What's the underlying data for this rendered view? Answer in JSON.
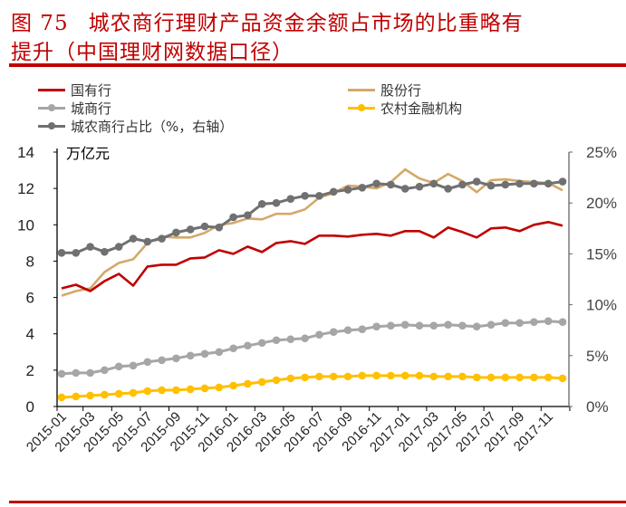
{
  "header": {
    "figure_label": "图 75",
    "title_line1": "城农商行理财产品资金余额占市场的比重略有",
    "title_line2": "提升（中国理财网数据口径）"
  },
  "chart_data": {
    "type": "line",
    "title": "",
    "ylabel": "万亿元",
    "ylabel_right": "",
    "ylim": [
      0,
      14
    ],
    "y_ticks": [
      0,
      2,
      4,
      6,
      8,
      10,
      12,
      14
    ],
    "y2lim": [
      0,
      25
    ],
    "y2_ticks": [
      "0%",
      "5%",
      "10%",
      "15%",
      "20%",
      "25%"
    ],
    "grid": false,
    "legend_position": "top",
    "x": [
      "2015-01",
      "2015-02",
      "2015-03",
      "2015-04",
      "2015-05",
      "2015-06",
      "2015-07",
      "2015-08",
      "2015-09",
      "2015-10",
      "2015-11",
      "2015-12",
      "2016-01",
      "2016-02",
      "2016-03",
      "2016-04",
      "2016-05",
      "2016-06",
      "2016-07",
      "2016-08",
      "2016-09",
      "2016-10",
      "2016-11",
      "2016-12",
      "2017-01",
      "2017-02",
      "2017-03",
      "2017-04",
      "2017-05",
      "2017-06",
      "2017-07",
      "2017-08",
      "2017-09",
      "2017-10",
      "2017-11",
      "2017-12"
    ],
    "x_tick_labels": [
      "2015-01",
      "2015-03",
      "2015-05",
      "2015-07",
      "2015-09",
      "2015-11",
      "2016-01",
      "2016-03",
      "2016-05",
      "2016-07",
      "2016-09",
      "2016-11",
      "2017-01",
      "2017-03",
      "2017-05",
      "2017-07",
      "2017-09",
      "2017-11"
    ],
    "series": [
      {
        "name": "国有行",
        "color": "#c00000",
        "markers": false,
        "axis": "left",
        "values": [
          6.5,
          6.7,
          6.35,
          6.9,
          7.3,
          6.65,
          7.7,
          7.8,
          7.8,
          8.15,
          8.2,
          8.6,
          8.4,
          8.8,
          8.5,
          9.0,
          9.1,
          8.95,
          9.4,
          9.4,
          9.35,
          9.45,
          9.5,
          9.4,
          9.65,
          9.65,
          9.3,
          9.85,
          9.6,
          9.3,
          9.8,
          9.85,
          9.65,
          10.0,
          10.15,
          9.95
        ]
      },
      {
        "name": "股份行",
        "color": "#d4a96a",
        "markers": false,
        "axis": "left",
        "values": [
          6.1,
          6.35,
          6.5,
          7.4,
          7.9,
          8.1,
          9.0,
          9.35,
          9.3,
          9.3,
          9.55,
          10.0,
          10.1,
          10.35,
          10.3,
          10.6,
          10.6,
          10.85,
          11.5,
          11.75,
          12.15,
          12.1,
          12.0,
          12.35,
          13.05,
          12.55,
          12.3,
          12.8,
          12.4,
          11.8,
          12.45,
          12.5,
          12.4,
          12.35,
          12.3,
          11.9
        ]
      },
      {
        "name": "城商行",
        "color": "#a6a6a6",
        "markers": true,
        "axis": "left",
        "values": [
          1.8,
          1.85,
          1.85,
          2.0,
          2.2,
          2.25,
          2.45,
          2.55,
          2.65,
          2.8,
          2.9,
          3.0,
          3.2,
          3.35,
          3.5,
          3.65,
          3.7,
          3.75,
          3.95,
          4.1,
          4.2,
          4.25,
          4.4,
          4.45,
          4.5,
          4.45,
          4.45,
          4.5,
          4.45,
          4.4,
          4.5,
          4.6,
          4.6,
          4.65,
          4.7,
          4.65
        ]
      },
      {
        "name": "农村金融机构",
        "color": "#ffc000",
        "markers": true,
        "axis": "left",
        "values": [
          0.5,
          0.55,
          0.6,
          0.65,
          0.7,
          0.75,
          0.85,
          0.9,
          0.9,
          0.95,
          1.0,
          1.05,
          1.15,
          1.25,
          1.35,
          1.45,
          1.55,
          1.6,
          1.65,
          1.65,
          1.65,
          1.7,
          1.7,
          1.7,
          1.7,
          1.7,
          1.65,
          1.65,
          1.65,
          1.6,
          1.6,
          1.6,
          1.6,
          1.6,
          1.6,
          1.55
        ]
      },
      {
        "name": "城农商行占比（%，右轴）",
        "color": "#707070",
        "markers": true,
        "axis": "right",
        "values": [
          15.1,
          15.1,
          15.7,
          15.2,
          15.7,
          16.5,
          16.2,
          16.5,
          17.1,
          17.4,
          17.7,
          17.6,
          18.6,
          18.8,
          19.9,
          20.0,
          20.4,
          20.7,
          20.7,
          21.1,
          21.3,
          21.5,
          21.9,
          21.8,
          21.4,
          21.6,
          21.9,
          21.4,
          21.8,
          22.1,
          21.7,
          21.8,
          21.9,
          21.9,
          21.9,
          22.1
        ]
      }
    ]
  }
}
